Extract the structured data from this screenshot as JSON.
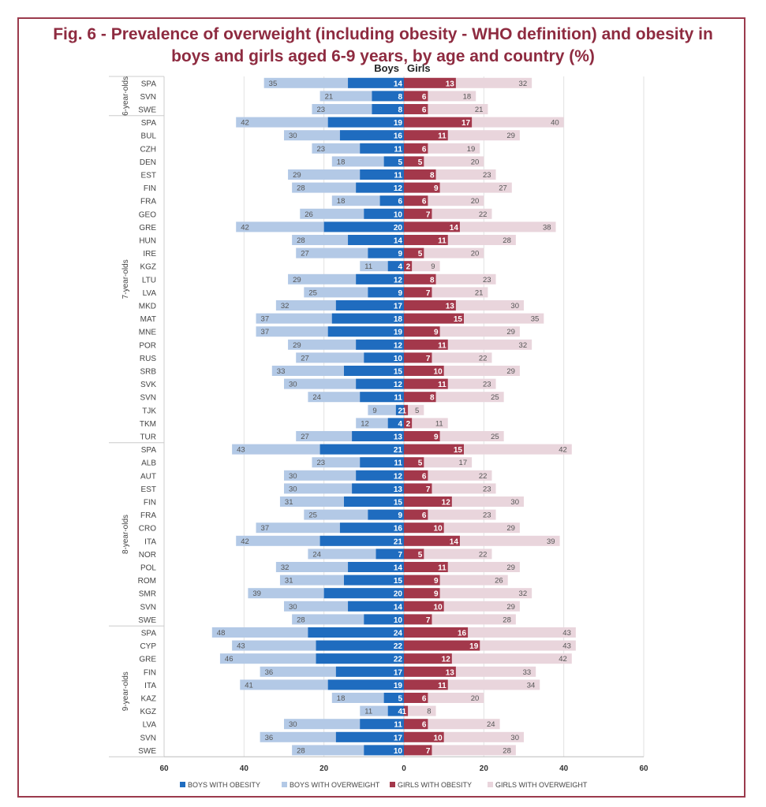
{
  "chart_data": {
    "type": "bar",
    "title_line1": "Fig. 6 - Prevalence of overweight (including obesity - WHO definition) and obesity in",
    "title_line2": "boys and girls aged 6-9 years, by age and country (%)",
    "side_labels": {
      "left": "Boys",
      "right": "Girls"
    },
    "xlim": [
      -60,
      60
    ],
    "x_ticks": [
      "60",
      "40",
      "20",
      "0",
      "20",
      "40",
      "60"
    ],
    "grid": true,
    "legend_position": "bottom",
    "legend": [
      "BOYS WITH OBESITY",
      "BOYS WITH OVERWEIGHT",
      "GIRLS WITH OBESITY",
      "GIRLS WITH OVERWEIGHT"
    ],
    "colors": {
      "boys_obesity": "#1f6cbf",
      "boys_overweight": "#b3c9e6",
      "girls_obesity": "#a3384b",
      "girls_overweight": "#e9d5dc"
    },
    "groups": [
      {
        "label": "6-year-olds",
        "rows": [
          [
            "SPA",
            35,
            14,
            13,
            32
          ],
          [
            "SVN",
            21,
            8,
            6,
            18
          ],
          [
            "SWE",
            23,
            8,
            6,
            21
          ]
        ]
      },
      {
        "label": "7-year-olds",
        "rows": [
          [
            "SPA",
            42,
            19,
            17,
            40
          ],
          [
            "BUL",
            30,
            16,
            11,
            29
          ],
          [
            "CZH",
            23,
            11,
            6,
            19
          ],
          [
            "DEN",
            18,
            5,
            5,
            20
          ],
          [
            "EST",
            29,
            11,
            8,
            23
          ],
          [
            "FIN",
            28,
            12,
            9,
            27
          ],
          [
            "FRA",
            18,
            6,
            6,
            20
          ],
          [
            "GEO",
            26,
            10,
            7,
            22
          ],
          [
            "GRE",
            42,
            20,
            14,
            38
          ],
          [
            "HUN",
            28,
            14,
            11,
            28
          ],
          [
            "IRE",
            27,
            9,
            5,
            20
          ],
          [
            "KGZ",
            11,
            4,
            2,
            9
          ],
          [
            "LTU",
            29,
            12,
            8,
            23
          ],
          [
            "LVA",
            25,
            9,
            7,
            21
          ],
          [
            "MKD",
            32,
            17,
            13,
            30
          ],
          [
            "MAT",
            37,
            18,
            15,
            35
          ],
          [
            "MNE",
            37,
            19,
            9,
            29
          ],
          [
            "POR",
            29,
            12,
            11,
            32
          ],
          [
            "RUS",
            27,
            10,
            7,
            22
          ],
          [
            "SRB",
            33,
            15,
            10,
            29
          ],
          [
            "SVK",
            30,
            12,
            11,
            23
          ],
          [
            "SVN",
            24,
            11,
            8,
            25
          ],
          [
            "TJK",
            9,
            2,
            1,
            5
          ],
          [
            "TKM",
            12,
            4,
            2,
            11
          ],
          [
            "TUR",
            27,
            13,
            9,
            25
          ]
        ]
      },
      {
        "label": "8-year-olds",
        "rows": [
          [
            "SPA",
            43,
            21,
            15,
            42
          ],
          [
            "ALB",
            23,
            11,
            5,
            17
          ],
          [
            "AUT",
            30,
            12,
            6,
            22
          ],
          [
            "EST",
            30,
            13,
            7,
            23
          ],
          [
            "FIN",
            31,
            15,
            12,
            30
          ],
          [
            "FRA",
            25,
            9,
            6,
            23
          ],
          [
            "CRO",
            37,
            16,
            10,
            29
          ],
          [
            "ITA",
            42,
            21,
            14,
            39
          ],
          [
            "NOR",
            24,
            7,
            5,
            22
          ],
          [
            "POL",
            32,
            14,
            11,
            29
          ],
          [
            "ROM",
            31,
            15,
            9,
            26
          ],
          [
            "SMR",
            39,
            20,
            9,
            32
          ],
          [
            "SVN",
            30,
            14,
            10,
            29
          ],
          [
            "SWE",
            28,
            10,
            7,
            28
          ]
        ]
      },
      {
        "label": "9-year-olds",
        "rows": [
          [
            "SPA",
            48,
            24,
            16,
            43
          ],
          [
            "CYP",
            43,
            22,
            19,
            43
          ],
          [
            "GRE",
            46,
            22,
            12,
            42
          ],
          [
            "FIN",
            36,
            17,
            13,
            33
          ],
          [
            "ITA",
            41,
            19,
            11,
            34
          ],
          [
            "KAZ",
            18,
            5,
            6,
            20
          ],
          [
            "KGZ",
            11,
            4,
            1,
            8
          ],
          [
            "LVA",
            30,
            11,
            6,
            24
          ],
          [
            "SVN",
            36,
            17,
            10,
            30
          ],
          [
            "SWE",
            28,
            10,
            7,
            28
          ]
        ]
      }
    ],
    "row_fields": [
      "country",
      "boys_overweight",
      "boys_obesity",
      "girls_obesity",
      "girls_overweight"
    ]
  }
}
